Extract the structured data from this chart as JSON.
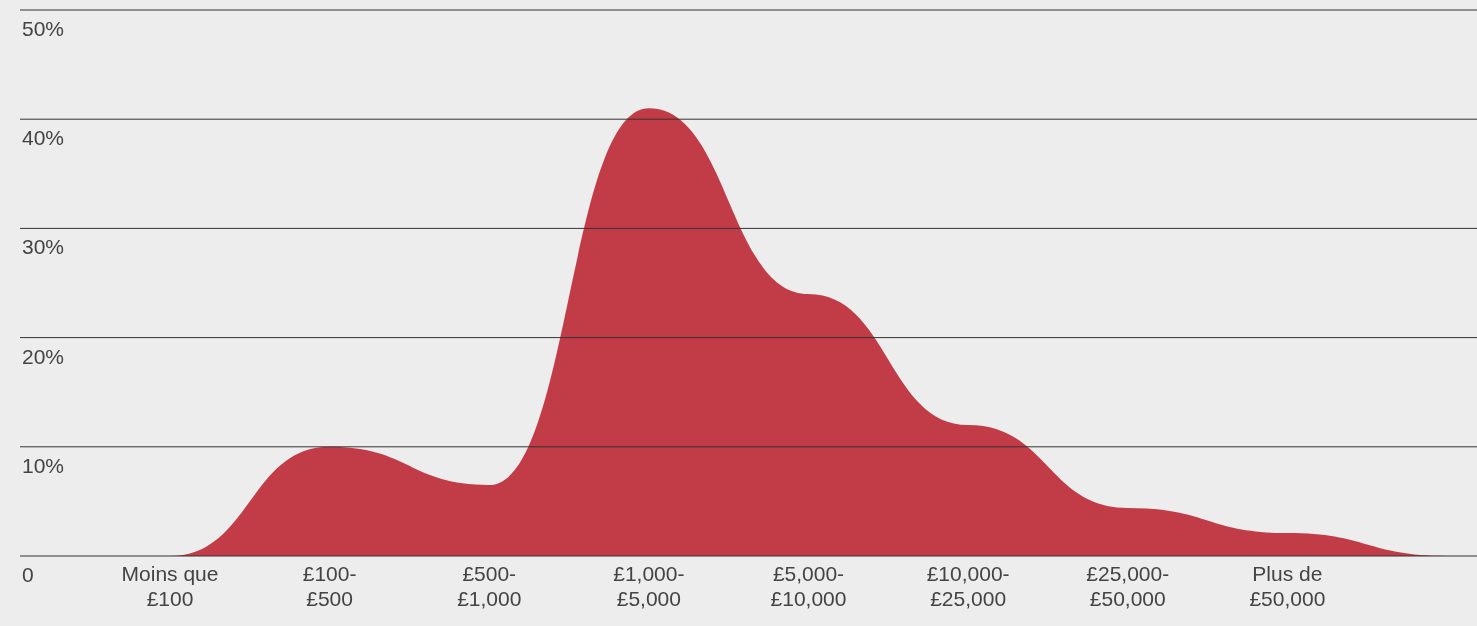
{
  "chart_data": {
    "type": "area",
    "categories": [
      "Moins que £100",
      "£100-£500",
      "£500-£1,000",
      "£1,000-£5,000",
      "£5,000-£10,000",
      "£10,000-£25,000",
      "£25,000-£50,000",
      "Plus de £50,000",
      null
    ],
    "series": [
      {
        "color": "#c23c47",
        "values": [
          0,
          10,
          6.5,
          41,
          24,
          12,
          4.4,
          2.1,
          0
        ]
      }
    ],
    "ylim": [
      0,
      50
    ],
    "yticks": [
      {
        "value": 0,
        "label": "0"
      },
      {
        "value": 10,
        "label": "10%"
      },
      {
        "value": 20,
        "label": "20%"
      },
      {
        "value": 30,
        "label": "30%"
      },
      {
        "value": 40,
        "label": "40%"
      },
      {
        "value": 50,
        "label": "50%"
      }
    ],
    "grid": "y"
  }
}
